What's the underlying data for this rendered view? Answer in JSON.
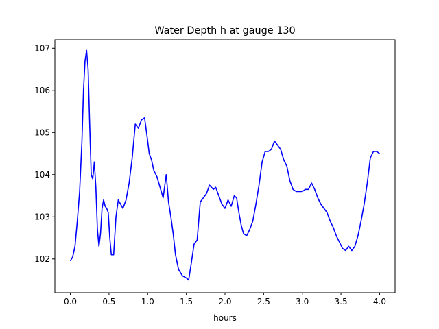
{
  "chart_data": {
    "type": "line",
    "title": "Water Depth h at gauge 130",
    "xlabel": "hours",
    "ylabel": "",
    "xlim": [
      -0.2,
      4.2
    ],
    "ylim": [
      101.2,
      107.2
    ],
    "xticks": [
      0.0,
      0.5,
      1.0,
      1.5,
      2.0,
      2.5,
      3.0,
      3.5,
      4.0
    ],
    "xtick_labels": [
      "0.0",
      "0.5",
      "1.0",
      "1.5",
      "2.0",
      "2.5",
      "3.0",
      "3.5",
      "4.0"
    ],
    "yticks": [
      102,
      103,
      104,
      105,
      106,
      107
    ],
    "ytick_labels": [
      "102",
      "103",
      "104",
      "105",
      "106",
      "107"
    ],
    "grid": false,
    "series": [
      {
        "color": "#0000ff",
        "x": [
          0.0,
          0.03,
          0.06,
          0.09,
          0.12,
          0.15,
          0.17,
          0.19,
          0.21,
          0.23,
          0.25,
          0.27,
          0.29,
          0.31,
          0.33,
          0.35,
          0.37,
          0.39,
          0.41,
          0.43,
          0.45,
          0.47,
          0.49,
          0.51,
          0.53,
          0.56,
          0.59,
          0.62,
          0.65,
          0.68,
          0.72,
          0.76,
          0.8,
          0.84,
          0.88,
          0.92,
          0.96,
          1.0,
          1.02,
          1.05,
          1.08,
          1.12,
          1.16,
          1.2,
          1.24,
          1.27,
          1.3,
          1.33,
          1.36,
          1.4,
          1.45,
          1.5,
          1.53,
          1.56,
          1.6,
          1.64,
          1.68,
          1.72,
          1.76,
          1.8,
          1.85,
          1.88,
          1.92,
          1.96,
          2.0,
          2.04,
          2.08,
          2.12,
          2.15,
          2.18,
          2.21,
          2.24,
          2.28,
          2.32,
          2.36,
          2.4,
          2.44,
          2.48,
          2.52,
          2.56,
          2.6,
          2.64,
          2.68,
          2.72,
          2.76,
          2.8,
          2.84,
          2.88,
          2.92,
          2.96,
          3.0,
          3.04,
          3.08,
          3.12,
          3.16,
          3.2,
          3.24,
          3.28,
          3.32,
          3.36,
          3.4,
          3.44,
          3.48,
          3.52,
          3.56,
          3.6,
          3.64,
          3.68,
          3.72,
          3.76,
          3.8,
          3.84,
          3.88,
          3.92,
          3.96,
          4.0
        ],
        "y": [
          101.95,
          102.05,
          102.3,
          102.9,
          103.6,
          104.8,
          106.0,
          106.7,
          106.95,
          106.5,
          105.2,
          104.0,
          103.9,
          104.3,
          103.7,
          102.7,
          102.3,
          102.6,
          103.2,
          103.4,
          103.25,
          103.2,
          103.1,
          102.5,
          102.1,
          102.1,
          103.0,
          103.4,
          103.3,
          103.2,
          103.4,
          103.8,
          104.4,
          105.2,
          105.1,
          105.3,
          105.35,
          104.8,
          104.5,
          104.35,
          104.1,
          103.95,
          103.7,
          103.45,
          104.0,
          103.35,
          103.0,
          102.6,
          102.1,
          101.75,
          101.6,
          101.55,
          101.5,
          101.85,
          102.35,
          102.45,
          103.35,
          103.45,
          103.55,
          103.75,
          103.65,
          103.7,
          103.5,
          103.3,
          103.2,
          103.4,
          103.25,
          103.5,
          103.45,
          103.1,
          102.8,
          102.6,
          102.55,
          102.7,
          102.9,
          103.3,
          103.75,
          104.3,
          104.55,
          104.55,
          104.6,
          104.8,
          104.7,
          104.6,
          104.35,
          104.2,
          103.85,
          103.65,
          103.6,
          103.6,
          103.6,
          103.65,
          103.65,
          103.8,
          103.65,
          103.45,
          103.3,
          103.2,
          103.1,
          102.9,
          102.75,
          102.55,
          102.4,
          102.25,
          102.2,
          102.3,
          102.2,
          102.3,
          102.55,
          102.9,
          103.3,
          103.8,
          104.4,
          104.55,
          104.55,
          104.5
        ]
      }
    ]
  }
}
